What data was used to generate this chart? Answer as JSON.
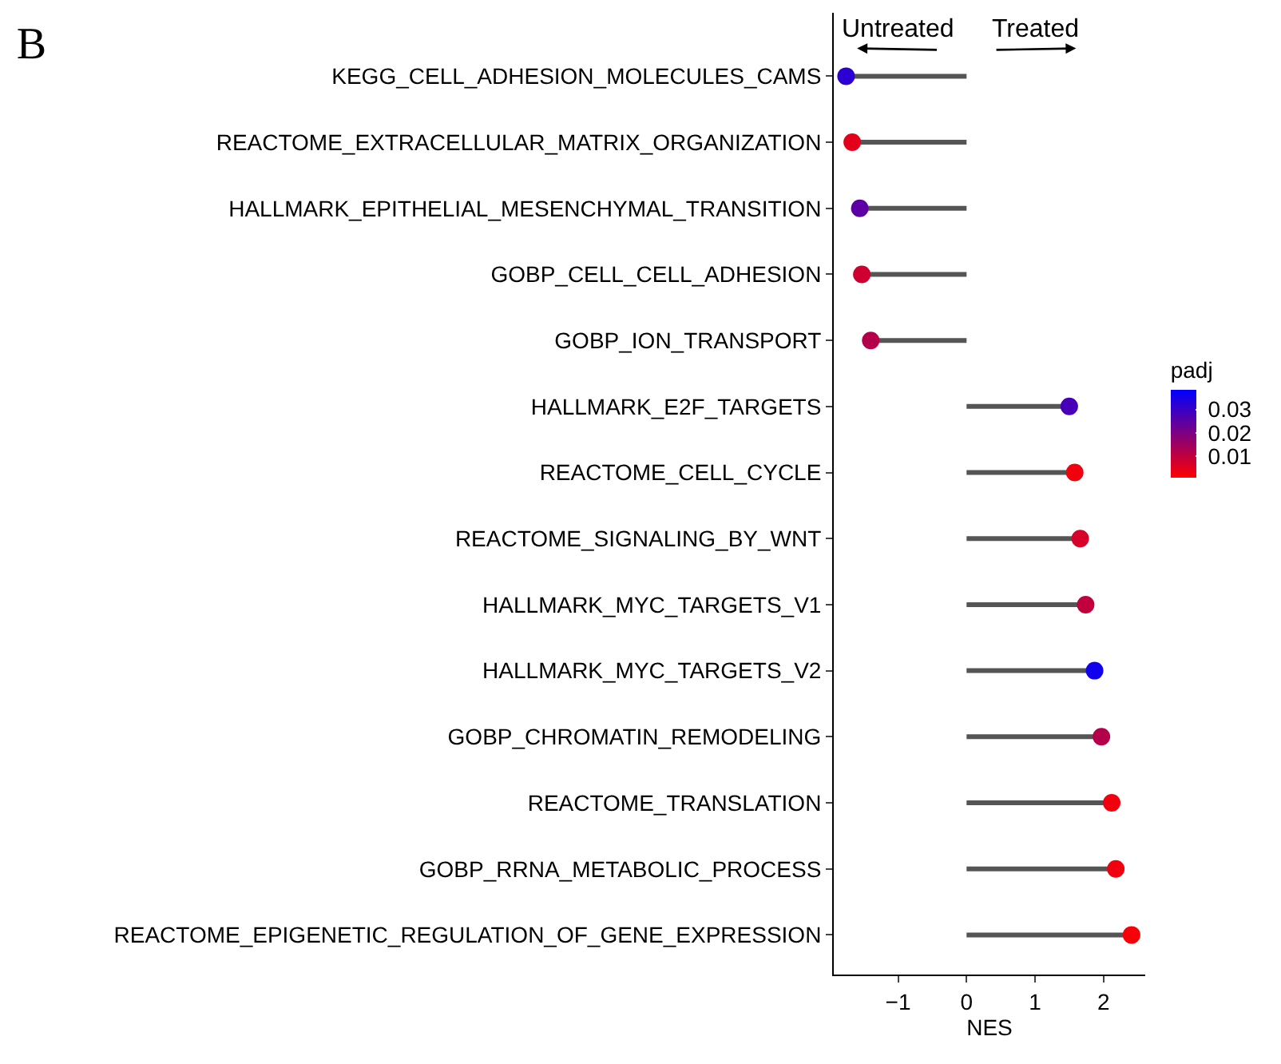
{
  "chart_data": {
    "type": "lollipop",
    "orientation": "horizontal",
    "title": "B",
    "xlabel": "NES",
    "clabel": "padj",
    "categories": [
      "KEGG_CELL_ADHESION_MOLECULES_CAMS",
      "REACTOME_EXTRACELLULAR_MATRIX_ORGANIZATION",
      "HALLMARK_EPITHELIAL_MESENCHYMAL_TRANSITION",
      "GOBP_CELL_CELL_ADHESION",
      "GOBP_ION_TRANSPORT",
      "HALLMARK_E2F_TARGETS",
      "REACTOME_CELL_CYCLE",
      "REACTOME_SIGNALING_BY_WNT",
      "HALLMARK_MYC_TARGETS_V1",
      "HALLMARK_MYC_TARGETS_V2",
      "GOBP_CHROMATIN_REMODELING",
      "REACTOME_TRANSLATION",
      "GOBP_RRNA_METABOLIC_PROCESS",
      "REACTOME_EPIGENETIC_REGULATION_OF_GENE_EXPRESSION"
    ],
    "values": [
      -1.76,
      -1.67,
      -1.56,
      -1.53,
      -1.4,
      1.5,
      1.58,
      1.66,
      1.74,
      1.87,
      1.97,
      2.12,
      2.18,
      2.41
    ],
    "cvalues": [
      0.032,
      0.005,
      0.025,
      0.008,
      0.012,
      0.028,
      0.003,
      0.007,
      0.01,
      0.036,
      0.012,
      0.003,
      0.003,
      0.002
    ],
    "clim": [
      0.001,
      0.0385
    ],
    "cticks": [
      0.01,
      0.02,
      0.03
    ],
    "marker": "circle",
    "xlim": [
      -1.94,
      2.61
    ],
    "xticks": [
      -1,
      0,
      1,
      2
    ],
    "annotations": [
      "Untreated",
      "Treated"
    ]
  }
}
